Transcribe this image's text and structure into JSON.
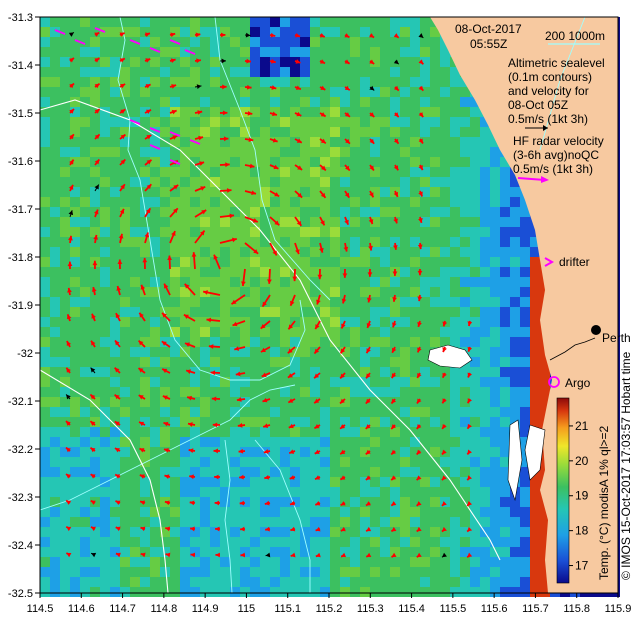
{
  "header": {
    "date": "08-Oct-2017",
    "time": "05:55Z"
  },
  "scale_bar": {
    "label": "200  1000m"
  },
  "legend": {
    "altimetric_lines": [
      "Altimetric sealevel",
      "(0.1m contours)",
      "and velocity for",
      "08-Oct 05Z",
      "0.5m/s (1kt 3h)"
    ],
    "hf_lines": [
      "HF radar velocity",
      "(3-6h avg)noQC",
      "0.5m/s (1kt 3h)"
    ],
    "drifter": "drifter",
    "argo": "Argo",
    "city": "Perth"
  },
  "axes": {
    "x_ticks": [
      "114.5",
      "114.6",
      "114.7",
      "114.8",
      "114.9",
      "115",
      "115.1",
      "115.2",
      "115.3",
      "115.4",
      "115.5",
      "115.6",
      "115.7",
      "115.8",
      "115.9"
    ],
    "y_ticks": [
      "-31.3",
      "-31.4",
      "-31.5",
      "-31.6",
      "-31.7",
      "-31.8",
      "-31.9",
      "-32",
      "-32.1",
      "-32.2",
      "-32.3",
      "-32.4",
      "-32.5"
    ],
    "x_range": [
      114.5,
      115.9
    ],
    "y_range": [
      -32.5,
      -31.3
    ]
  },
  "colorbar": {
    "ticks": [
      "17",
      "18",
      "19",
      "20",
      "21"
    ],
    "label": "Temp. (°C) modisA 1% ql>=2",
    "range": [
      16.5,
      21.8
    ]
  },
  "credit": "© IMOS 15-Oct-2017 17:03:57 Hobart time",
  "colors": {
    "land": "#f7c9a0",
    "sst_mid": "#3cc060",
    "vector": "#ff0000",
    "hf": "#ff00ff",
    "contour": "#9fffff"
  }
}
